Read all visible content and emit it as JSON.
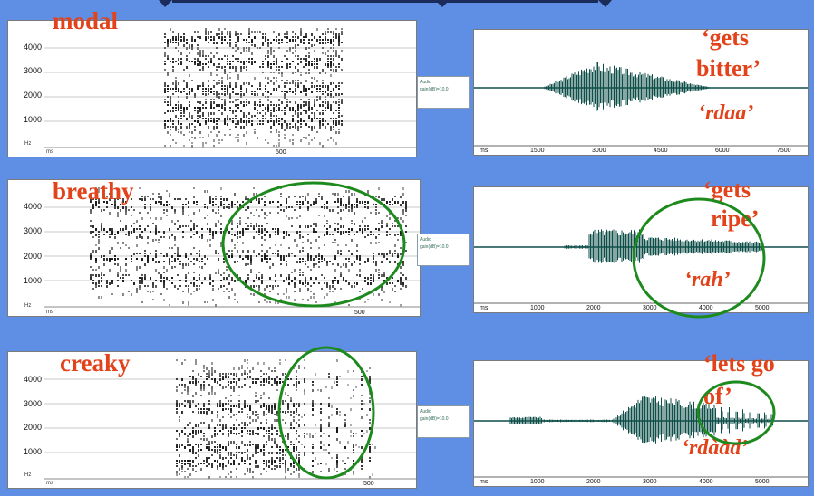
{
  "colors": {
    "background": "#5f8fe4",
    "label_red": "#e2431b",
    "circle_green": "#1d8a1d",
    "waveform": "#0f4f4a"
  },
  "rows": [
    {
      "type_label": "modal",
      "yticks": [
        "4000",
        "3000",
        "2000",
        "1000"
      ],
      "yunit": "Hz",
      "xunit": "ms",
      "xtick": "500",
      "gloss": "‘gets bitter’",
      "gloss_lines": [
        "‘gets",
        "bitter’"
      ],
      "word": "‘rdaa’",
      "wave_ticks": [
        "ms",
        "1500",
        "3000",
        "4500",
        "6000",
        "7500"
      ]
    },
    {
      "type_label": "breathy",
      "yticks": [
        "4000",
        "3000",
        "2000",
        "1000"
      ],
      "yunit": "Hz",
      "xunit": "ms",
      "xtick": "500",
      "gloss": "‘gets ripe’",
      "gloss_lines": [
        "‘gets",
        "ripe’"
      ],
      "word": "‘rah’",
      "wave_ticks": [
        "ms",
        "1000",
        "2000",
        "3000",
        "4000",
        "5000"
      ]
    },
    {
      "type_label": "creaky",
      "yticks": [
        "4000",
        "3000",
        "2000",
        "1000"
      ],
      "yunit": "Hz",
      "xunit": "ms",
      "xtick": "500",
      "gloss": "‘lets go of’",
      "gloss_lines": [
        "‘lets go",
        "of’"
      ],
      "word": "‘rdààd’",
      "wave_ticks": [
        "ms",
        "1000",
        "2000",
        "3000",
        "4000",
        "5000"
      ]
    }
  ],
  "mini_panel": {
    "line1": "Audio",
    "line2": "gain(dB)=10.0"
  }
}
